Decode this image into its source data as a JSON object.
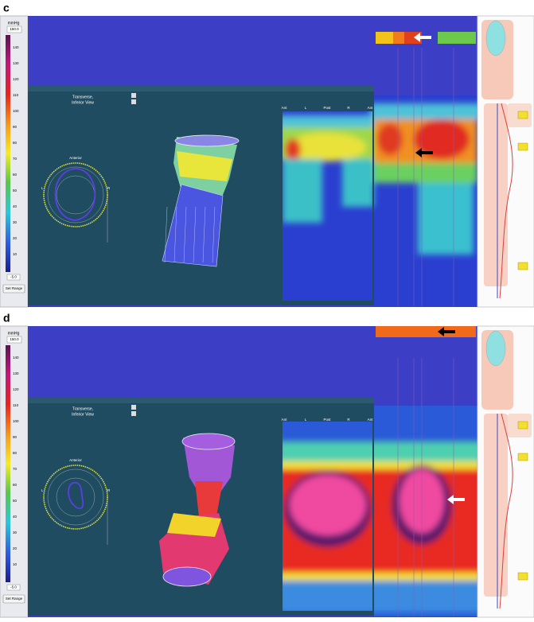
{
  "panels": [
    {
      "label": "c",
      "colorbar": {
        "unit": "mmHg",
        "top": "150.0",
        "ticks": [
          "140",
          "130",
          "120",
          "110",
          "100",
          "90",
          "80",
          "70",
          "60",
          "50",
          "40",
          "30",
          "20",
          "10"
        ],
        "bottom": "-5.0"
      },
      "button": "Set Range",
      "view_title": [
        "Transverse,",
        "Inferior View"
      ],
      "orientation": "Anterior",
      "sides": [
        "L",
        "R"
      ],
      "topo_axis": [
        "Ant",
        "L",
        "Post",
        "R",
        "Ant"
      ]
    },
    {
      "label": "d",
      "colorbar": {
        "unit": "mmHg",
        "top": "150.0",
        "ticks": [
          "140",
          "130",
          "120",
          "110",
          "100",
          "90",
          "80",
          "70",
          "60",
          "50",
          "40",
          "30",
          "20",
          "10"
        ],
        "bottom": "-5.0"
      },
      "button": "Set Range",
      "view_title": [
        "Transverse,",
        "Inferior View"
      ],
      "orientation": "Anterior",
      "sides": [
        "L",
        "R"
      ],
      "topo_axis": [
        "Ant",
        "L",
        "Post",
        "R",
        "Ant"
      ]
    }
  ]
}
